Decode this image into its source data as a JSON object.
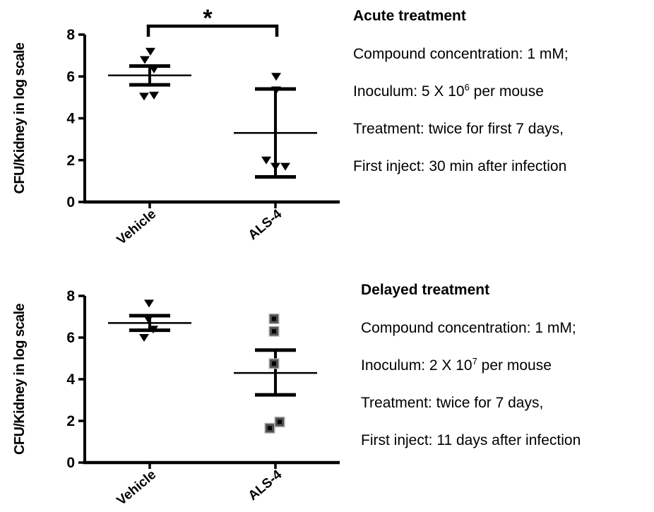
{
  "background": "#ffffff",
  "text_color": "#000000",
  "marker_colors": {
    "triangle": "#000000",
    "square_outer": "#ababab",
    "square_mid": "#4f4f4f",
    "square_core": "#000000"
  },
  "panels": [
    {
      "id": "acute",
      "info_title": "Acute treatment",
      "info_lines": [
        [
          {
            "t": "Compound concentration: 1 mM;"
          }
        ],
        [
          {
            "t": "Inoculum: 5 X 10"
          },
          {
            "t": "6",
            "sup": true
          },
          {
            "t": " per mouse"
          }
        ],
        [
          {
            "t": "Treatment: twice for first 7 days,"
          }
        ],
        [
          {
            "t": "First inject: 30 min after infection"
          }
        ]
      ]
    },
    {
      "id": "delayed",
      "info_title": "Delayed treatment",
      "info_lines": [
        [
          {
            "t": "Compound concentration: 1 mM;"
          }
        ],
        [
          {
            "t": "Inoculum: 2 X 10"
          },
          {
            "t": "7",
            "sup": true
          },
          {
            "t": " per mouse"
          }
        ],
        [
          {
            "t": "Treatment: twice for 7 days,"
          }
        ],
        [
          {
            "t": "First inject: 11 days after infection"
          }
        ]
      ]
    }
  ],
  "chart_data": [
    {
      "type": "scatter",
      "title": "Acute treatment",
      "xlabel": "",
      "ylabel": "CFU/Kidney in log scale",
      "ylim": [
        0,
        8
      ],
      "yticks": [
        0,
        2,
        4,
        6,
        8
      ],
      "grid": false,
      "legend": "none",
      "categories": [
        "Vehicle",
        "ALS-4"
      ],
      "series": [
        {
          "name": "Vehicle",
          "marker": "triangle-down",
          "marker_color": "#000000",
          "values": [
            7.2,
            6.8,
            6.35,
            5.05,
            5.1
          ],
          "mean": 6.05,
          "error_upper": 6.5,
          "error_lower": 5.6
        },
        {
          "name": "ALS-4",
          "marker": "triangle-down",
          "marker_color": "#000000",
          "values": [
            6.0,
            5.35,
            2.0,
            1.7,
            1.7
          ],
          "mean": 3.3,
          "error_upper": 5.4,
          "error_lower": 1.2
        }
      ],
      "significance": {
        "label": "*",
        "between": [
          "Vehicle",
          "ALS-4"
        ]
      }
    },
    {
      "type": "scatter",
      "title": "Delayed treatment",
      "xlabel": "",
      "ylabel": "CFU/Kidney in log scale",
      "ylim": [
        0,
        8
      ],
      "yticks": [
        0,
        2,
        4,
        6,
        8
      ],
      "grid": false,
      "legend": "none",
      "categories": [
        "Vehicle",
        "ALS-4"
      ],
      "series": [
        {
          "name": "Vehicle",
          "marker": "triangle-down",
          "marker_color": "#000000",
          "values": [
            7.65,
            6.9,
            6.4,
            6.0
          ],
          "mean": 6.7,
          "error_upper": 7.05,
          "error_lower": 6.35
        },
        {
          "name": "ALS-4",
          "marker": "square-target",
          "marker_color": "#4f4f4f",
          "values": [
            6.9,
            6.3,
            4.75,
            1.95,
            1.65
          ],
          "mean": 4.3,
          "error_upper": 5.4,
          "error_lower": 3.25
        }
      ]
    }
  ]
}
